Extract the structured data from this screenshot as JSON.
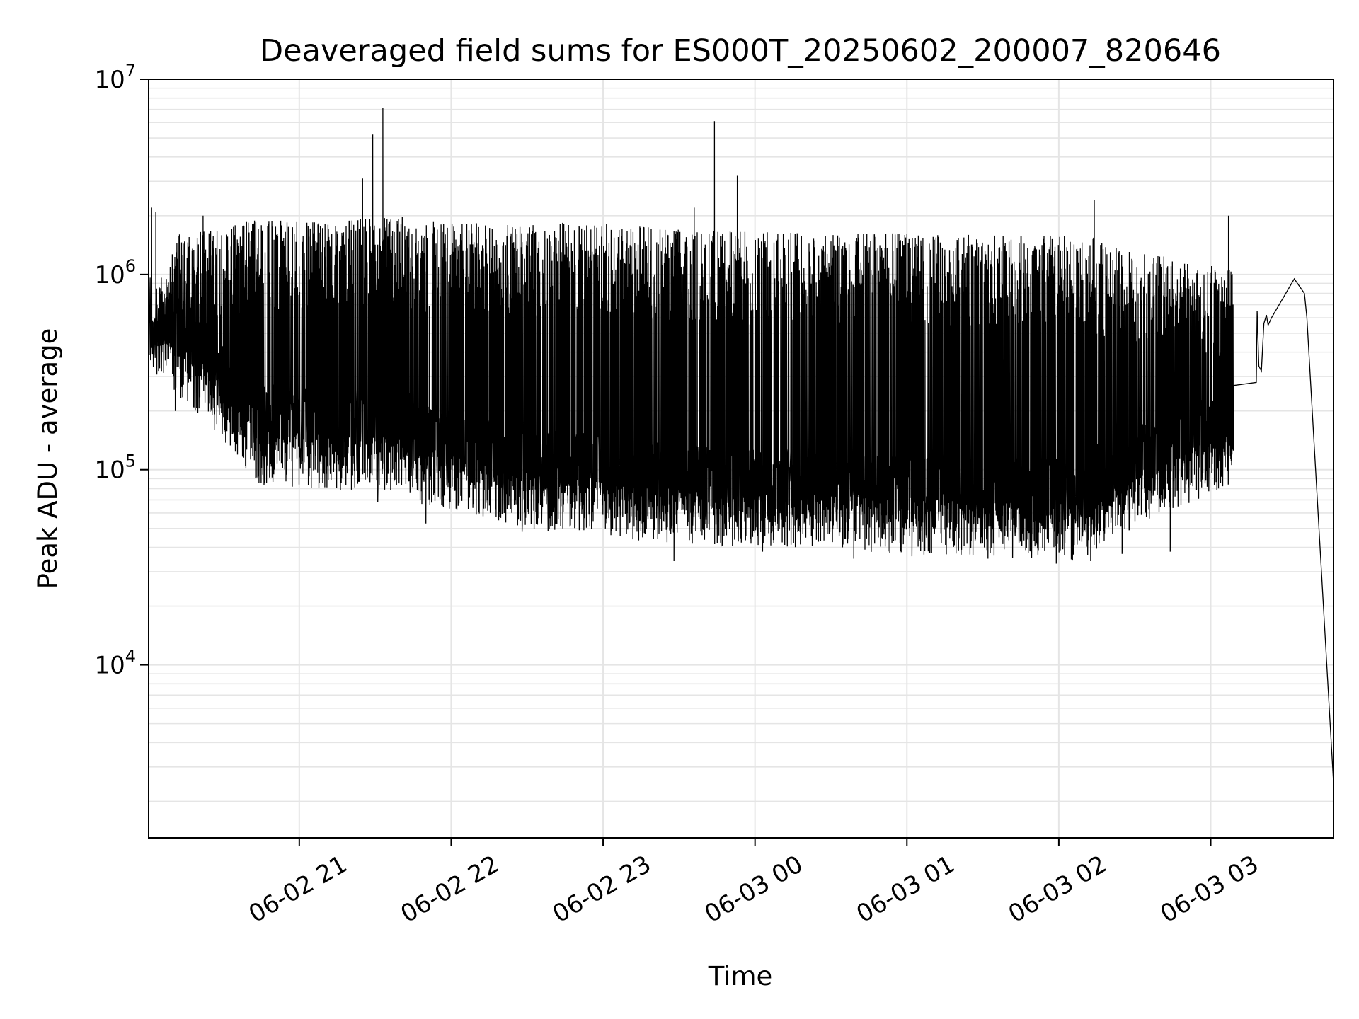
{
  "chart_data": {
    "type": "line",
    "title": "Deaveraged field sums for ES000T_20250602_200007_820646",
    "xlabel": "Time",
    "ylabel": "Peak ADU - average",
    "yscale": "log",
    "ylim": [
      1300,
      10000000
    ],
    "xlim": [
      "2025-06-02T20:00:30",
      "2025-06-03T03:48:30"
    ],
    "x_ticks": [
      {
        "time": "2025-06-02T21:00:00",
        "label": "06-02 21"
      },
      {
        "time": "2025-06-02T22:00:00",
        "label": "06-02 22"
      },
      {
        "time": "2025-06-02T23:00:00",
        "label": "06-02 23"
      },
      {
        "time": "2025-06-03T00:00:00",
        "label": "06-03 00"
      },
      {
        "time": "2025-06-03T01:00:00",
        "label": "06-03 01"
      },
      {
        "time": "2025-06-03T02:00:00",
        "label": "06-03 02"
      },
      {
        "time": "2025-06-03T03:00:00",
        "label": "06-03 03"
      }
    ],
    "y_ticks": [
      {
        "value": 10000,
        "base": "10",
        "exp": "4"
      },
      {
        "value": 100000,
        "base": "10",
        "exp": "5"
      },
      {
        "value": 1000000,
        "base": "10",
        "exp": "6"
      },
      {
        "value": 10000000,
        "base": "10",
        "exp": "7"
      }
    ],
    "grid": true,
    "line_color": "#000000",
    "grid_color": "#e5e5e5",
    "segments": [
      {
        "start": "2025-06-02T20:00:30",
        "end": "2025-06-02T20:15:00",
        "low": [
          450000,
          280000
        ],
        "high": [
          700000,
          1800000
        ]
      },
      {
        "start": "2025-06-02T20:15:00",
        "end": "2025-06-02T20:45:00",
        "low": [
          300000,
          110000
        ],
        "high": [
          1500000,
          1900000
        ]
      },
      {
        "start": "2025-06-02T20:45:00",
        "end": "2025-06-02T21:45:00",
        "low": [
          110000,
          100000
        ],
        "high": [
          1800000,
          1900000
        ]
      },
      {
        "start": "2025-06-02T21:45:00",
        "end": "2025-06-02T22:35:00",
        "low": [
          90000,
          65000
        ],
        "high": [
          1800000,
          1700000
        ]
      },
      {
        "start": "2025-06-02T22:35:00",
        "end": "2025-06-02T23:30:00",
        "low": [
          65000,
          55000
        ],
        "high": [
          1800000,
          1650000
        ]
      },
      {
        "start": "2025-06-02T23:30:00",
        "end": "2025-06-03T02:15:00",
        "low": [
          55000,
          45000
        ],
        "high": [
          1600000,
          1500000
        ]
      },
      {
        "start": "2025-06-03T02:15:00",
        "end": "2025-06-03T03:09:00",
        "low": [
          55000,
          110000
        ],
        "high": [
          1400000,
          1000000
        ]
      }
    ],
    "spikes": [
      {
        "time": "2025-06-02T20:01:40",
        "value": 2200000
      },
      {
        "time": "2025-06-02T20:03:20",
        "value": 2100000
      },
      {
        "time": "2025-06-02T20:22:00",
        "value": 2000000
      },
      {
        "time": "2025-06-02T21:25:00",
        "value": 3100000
      },
      {
        "time": "2025-06-02T21:29:00",
        "value": 5200000
      },
      {
        "time": "2025-06-02T21:33:00",
        "value": 7100000
      },
      {
        "time": "2025-06-02T23:36:00",
        "value": 2200000
      },
      {
        "time": "2025-06-02T23:44:00",
        "value": 6100000
      },
      {
        "time": "2025-06-02T23:53:00",
        "value": 3200000
      },
      {
        "time": "2025-06-03T02:14:00",
        "value": 2400000
      },
      {
        "time": "2025-06-03T03:07:00",
        "value": 2000000
      }
    ],
    "dips": [
      {
        "time": "2025-06-02T20:11:00",
        "value": 200000
      },
      {
        "time": "2025-06-02T21:31:00",
        "value": 68000
      },
      {
        "time": "2025-06-02T21:50:00",
        "value": 53000
      },
      {
        "time": "2025-06-02T22:28:00",
        "value": 48000
      },
      {
        "time": "2025-06-02T23:28:00",
        "value": 34000
      },
      {
        "time": "2025-06-02T23:47:00",
        "value": 41000
      },
      {
        "time": "2025-06-03T00:03:00",
        "value": 38000
      },
      {
        "time": "2025-06-03T00:39:00",
        "value": 35000
      },
      {
        "time": "2025-06-03T01:02:00",
        "value": 36000
      },
      {
        "time": "2025-06-03T01:32:00",
        "value": 35000
      },
      {
        "time": "2025-06-03T01:59:00",
        "value": 33000
      },
      {
        "time": "2025-06-03T02:25:00",
        "value": 37000
      },
      {
        "time": "2025-06-03T02:44:00",
        "value": 38000
      }
    ],
    "tail": {
      "x": [
        "2025-06-03T03:09:00",
        "2025-06-03T03:18:00",
        "2025-06-03T03:18:20",
        "2025-06-03T03:19:00",
        "2025-06-03T03:20:00",
        "2025-06-03T03:21:00",
        "2025-06-03T03:22:00",
        "2025-06-03T03:22:40",
        "2025-06-03T03:24:00",
        "2025-06-03T03:33:00",
        "2025-06-03T03:37:00",
        "2025-06-03T03:38:00",
        "2025-06-03T03:48:30"
      ],
      "y": [
        270000,
        280000,
        650000,
        340000,
        320000,
        560000,
        620000,
        550000,
        600000,
        950000,
        800000,
        600000,
        2500
      ]
    }
  }
}
